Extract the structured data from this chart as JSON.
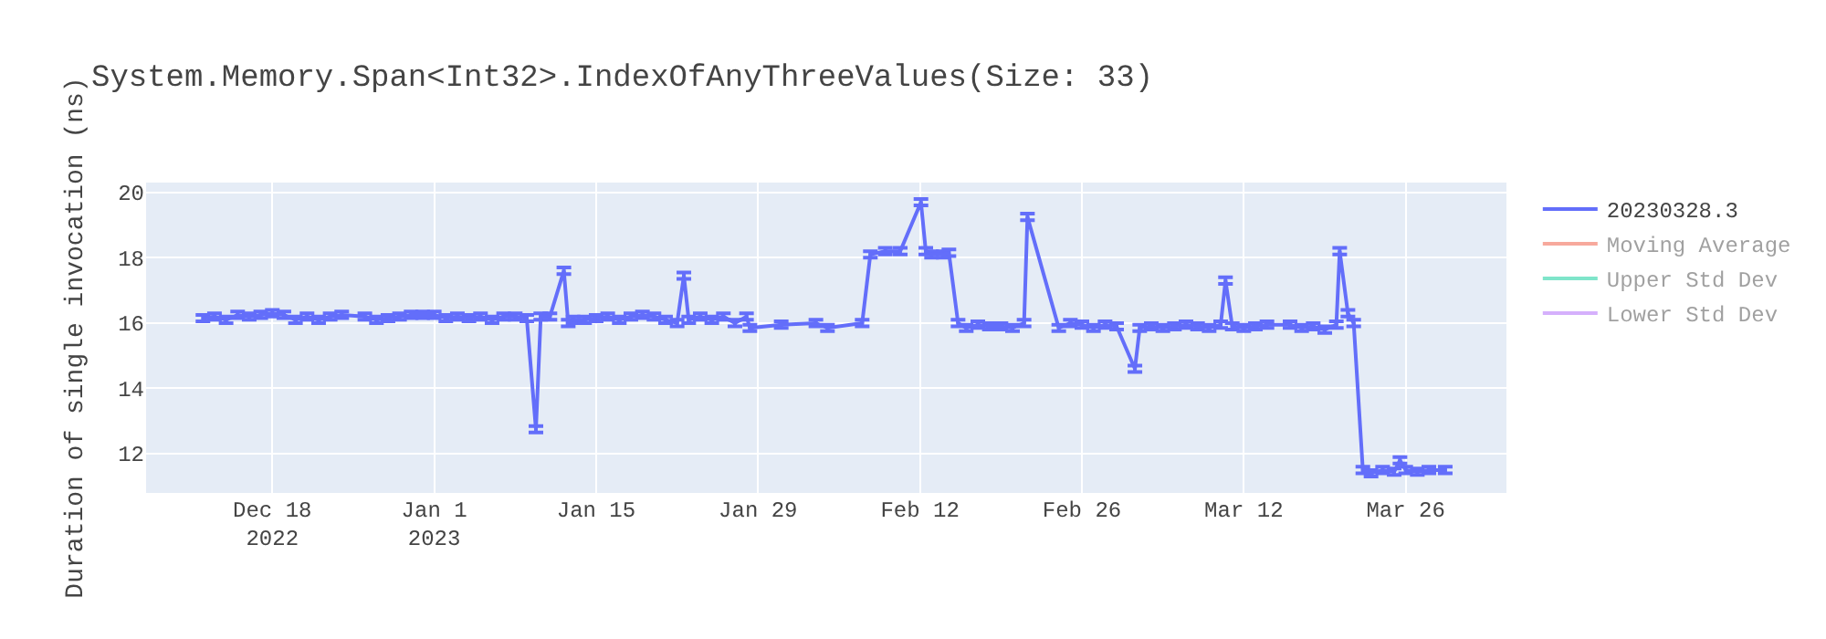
{
  "chart_data": {
    "type": "line",
    "title": "System.Memory.Span<Int32>.IndexOfAnyThreeValues(Size: 33)",
    "ylabel": "Duration of single invocation (ns)",
    "xlim": [
      "2022-12-07T02:00",
      "2023-04-03T17:00"
    ],
    "ylim": [
      10.8,
      20.3
    ],
    "yticks": [
      12,
      14,
      16,
      18,
      20
    ],
    "xticks": [
      {
        "value": "2022-12-18",
        "label": "Dec 18\n2022"
      },
      {
        "value": "2023-01-01",
        "label": "Jan 1\n2023"
      },
      {
        "value": "2023-01-15",
        "label": "Jan 15"
      },
      {
        "value": "2023-01-29",
        "label": "Jan 29"
      },
      {
        "value": "2023-02-12",
        "label": "Feb 12"
      },
      {
        "value": "2023-02-26",
        "label": "Feb 26"
      },
      {
        "value": "2023-03-12",
        "label": "Mar 12"
      },
      {
        "value": "2023-03-26",
        "label": "Mar 26"
      }
    ],
    "grid": true,
    "legend": "top right",
    "marker": "none",
    "line_style": "solid",
    "series": [
      {
        "name": "20230328.3",
        "color": "#636efa",
        "x": [
          "2022-12-12",
          "2022-12-13",
          "2022-12-14",
          "2022-12-15",
          "2022-12-16",
          "2022-12-17",
          "2022-12-18",
          "2022-12-19",
          "2022-12-20",
          "2022-12-21",
          "2022-12-22",
          "2022-12-23",
          "2022-12-24",
          "2022-12-26",
          "2022-12-27",
          "2022-12-28",
          "2022-12-29",
          "2022-12-30",
          "2022-12-31",
          "2023-01-01",
          "2023-01-02",
          "2023-01-03",
          "2023-01-04",
          "2023-01-05",
          "2023-01-06",
          "2023-01-07",
          "2023-01-08",
          "2023-01-09",
          "2023-01-09T19:00",
          "2023-01-10T05:00",
          "2023-01-11",
          "2023-01-12T05:00",
          "2023-01-12T14:00",
          "2023-01-13",
          "2023-01-14",
          "2023-01-15",
          "2023-01-16",
          "2023-01-17",
          "2023-01-18",
          "2023-01-19",
          "2023-01-20",
          "2023-01-21",
          "2023-01-22",
          "2023-01-22T14:00",
          "2023-01-23",
          "2023-01-24",
          "2023-01-25",
          "2023-01-26",
          "2023-01-27",
          "2023-01-28",
          "2023-01-28T07:00",
          "2023-01-31",
          "2023-02-03",
          "2023-02-04",
          "2023-02-07",
          "2023-02-07T17:00",
          "2023-02-09",
          "2023-02-10T07:00",
          "2023-02-12T02:00",
          "2023-02-12T12:00",
          "2023-02-13",
          "2023-02-14",
          "2023-02-14T12:00",
          "2023-02-15T07:00",
          "2023-02-16",
          "2023-02-17",
          "2023-02-18",
          "2023-02-19",
          "2023-02-20",
          "2023-02-21",
          "2023-02-21T07:00",
          "2023-02-24",
          "2023-02-25",
          "2023-02-26",
          "2023-02-27",
          "2023-02-28",
          "2023-03-01",
          "2023-03-02T14:00",
          "2023-03-03",
          "2023-03-04",
          "2023-03-05",
          "2023-03-06",
          "2023-03-07",
          "2023-03-08",
          "2023-03-09",
          "2023-03-10",
          "2023-03-10T10:00",
          "2023-03-11",
          "2023-03-12",
          "2023-03-13",
          "2023-03-14",
          "2023-03-16",
          "2023-03-17",
          "2023-03-18",
          "2023-03-19",
          "2023-03-20",
          "2023-03-20T07:00",
          "2023-03-21",
          "2023-03-21T12:00",
          "2023-03-22T07:00",
          "2023-03-23",
          "2023-03-24",
          "2023-03-25",
          "2023-03-25T12:00",
          "2023-03-26",
          "2023-03-27",
          "2023-03-28",
          "2023-03-29T10:00"
        ],
        "values": [
          16.15,
          16.2,
          16.1,
          16.25,
          16.2,
          16.25,
          16.3,
          16.25,
          16.1,
          16.2,
          16.1,
          16.2,
          16.25,
          16.2,
          16.1,
          16.15,
          16.2,
          16.25,
          16.25,
          16.25,
          16.15,
          16.2,
          16.15,
          16.2,
          16.1,
          16.2,
          16.2,
          16.15,
          12.75,
          16.2,
          16.2,
          17.6,
          16.0,
          16.1,
          16.1,
          16.15,
          16.2,
          16.1,
          16.2,
          16.25,
          16.2,
          16.1,
          16.0,
          17.45,
          16.1,
          16.2,
          16.1,
          16.2,
          16.0,
          16.2,
          15.85,
          15.95,
          16.0,
          15.85,
          16.0,
          18.1,
          18.2,
          18.2,
          19.7,
          18.2,
          18.1,
          18.1,
          18.15,
          16.0,
          15.85,
          15.95,
          15.9,
          15.9,
          15.85,
          16.0,
          19.25,
          15.85,
          16.0,
          15.95,
          15.85,
          15.95,
          15.9,
          14.6,
          15.85,
          15.9,
          15.85,
          15.9,
          15.95,
          15.9,
          15.85,
          15.95,
          17.3,
          15.9,
          15.85,
          15.9,
          15.95,
          15.95,
          15.85,
          15.9,
          15.8,
          15.95,
          18.2,
          16.3,
          16.0,
          11.5,
          11.4,
          11.5,
          11.45,
          11.8,
          11.5,
          11.45,
          11.5,
          11.5
        ],
        "errors": [
          0.1,
          0.1,
          0.1,
          0.1,
          0.1,
          0.1,
          0.1,
          0.1,
          0.1,
          0.1,
          0.1,
          0.1,
          0.1,
          0.1,
          0.1,
          0.1,
          0.1,
          0.1,
          0.1,
          0.1,
          0.1,
          0.1,
          0.1,
          0.1,
          0.1,
          0.1,
          0.1,
          0.1,
          0.1,
          0.1,
          0.1,
          0.1,
          0.1,
          0.1,
          0.1,
          0.1,
          0.1,
          0.1,
          0.1,
          0.1,
          0.1,
          0.1,
          0.1,
          0.1,
          0.1,
          0.1,
          0.1,
          0.1,
          0.1,
          0.1,
          0.1,
          0.1,
          0.1,
          0.1,
          0.1,
          0.1,
          0.1,
          0.1,
          0.1,
          0.1,
          0.1,
          0.1,
          0.1,
          0.1,
          0.1,
          0.1,
          0.1,
          0.1,
          0.1,
          0.1,
          0.1,
          0.1,
          0.1,
          0.1,
          0.1,
          0.1,
          0.1,
          0.1,
          0.1,
          0.1,
          0.1,
          0.1,
          0.1,
          0.1,
          0.1,
          0.1,
          0.1,
          0.1,
          0.1,
          0.1,
          0.1,
          0.1,
          0.1,
          0.1,
          0.1,
          0.1,
          0.1,
          0.1,
          0.1,
          0.1,
          0.1,
          0.1,
          0.1,
          0.1,
          0.1,
          0.1,
          0.1,
          0.1
        ]
      },
      {
        "name": "Moving Average",
        "color": "#ef553b"
      },
      {
        "name": "Upper Std Dev",
        "color": "#00cc96"
      },
      {
        "name": "Lower Std Dev",
        "color": "#ab63fa"
      }
    ]
  }
}
